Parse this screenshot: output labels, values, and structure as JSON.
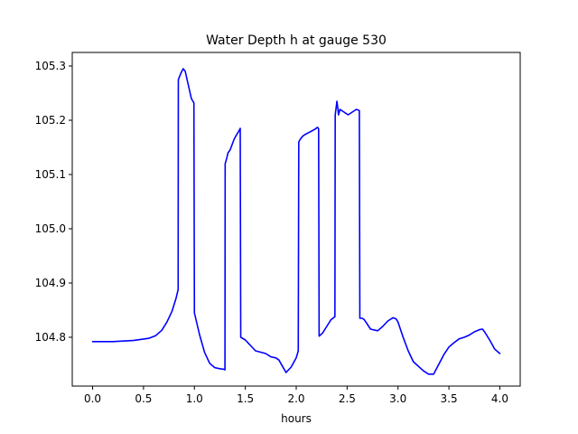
{
  "chart_data": {
    "type": "line",
    "title": "Water Depth h at gauge 530",
    "xlabel": "hours",
    "ylabel": "",
    "xlim": [
      -0.2,
      4.2
    ],
    "ylim": [
      104.71,
      105.325
    ],
    "xticks": [
      0.0,
      0.5,
      1.0,
      1.5,
      2.0,
      2.5,
      3.0,
      3.5,
      4.0
    ],
    "xtick_labels": [
      "0.0",
      "0.5",
      "1.0",
      "1.5",
      "2.0",
      "2.5",
      "3.0",
      "3.5",
      "4.0"
    ],
    "yticks": [
      104.8,
      104.9,
      105.0,
      105.1,
      105.2,
      105.3
    ],
    "ytick_labels": [
      "104.8",
      "104.9",
      "105.0",
      "105.1",
      "105.2",
      "105.3"
    ],
    "grid": false,
    "series": [
      {
        "color": "#0000ff",
        "x": [
          0.0,
          0.2,
          0.4,
          0.55,
          0.62,
          0.68,
          0.73,
          0.78,
          0.82,
          0.84,
          0.842,
          0.87,
          0.89,
          0.91,
          0.94,
          0.97,
          0.995,
          1.0,
          1.05,
          1.1,
          1.15,
          1.2,
          1.25,
          1.29,
          1.3,
          1.302,
          1.31,
          1.32,
          1.33,
          1.35,
          1.37,
          1.39,
          1.41,
          1.43,
          1.45,
          1.455,
          1.5,
          1.55,
          1.6,
          1.7,
          1.75,
          1.8,
          1.83,
          1.86,
          1.9,
          1.95,
          2.0,
          2.02,
          2.025,
          2.04,
          2.06,
          2.08,
          2.1,
          2.12,
          2.15,
          2.18,
          2.21,
          2.22,
          2.225,
          2.26,
          2.3,
          2.34,
          2.38,
          2.383,
          2.4,
          2.41,
          2.415,
          2.43,
          2.47,
          2.51,
          2.55,
          2.59,
          2.62,
          2.625,
          2.65,
          2.67,
          2.73,
          2.8,
          2.85,
          2.9,
          2.95,
          2.98,
          3.0,
          3.05,
          3.1,
          3.15,
          3.25,
          3.3,
          3.35,
          3.4,
          3.45,
          3.5,
          3.55,
          3.6,
          3.65,
          3.7,
          3.75,
          3.8,
          3.83,
          3.85,
          3.9,
          3.95,
          4.0
        ],
        "y": [
          104.792,
          104.792,
          104.794,
          104.798,
          104.803,
          104.813,
          104.828,
          104.848,
          104.872,
          104.888,
          105.275,
          105.288,
          105.295,
          105.29,
          105.265,
          105.24,
          105.232,
          104.845,
          104.805,
          104.772,
          104.752,
          104.744,
          104.742,
          104.741,
          104.74,
          105.12,
          105.125,
          105.132,
          105.14,
          105.145,
          105.155,
          105.165,
          105.172,
          105.178,
          105.185,
          104.8,
          104.795,
          104.785,
          104.775,
          104.77,
          104.764,
          104.762,
          104.758,
          104.748,
          104.735,
          104.745,
          104.762,
          104.775,
          105.16,
          105.165,
          105.17,
          105.173,
          105.175,
          105.177,
          105.18,
          105.183,
          105.187,
          105.184,
          104.802,
          104.808,
          104.82,
          104.832,
          104.838,
          105.21,
          105.235,
          105.22,
          105.21,
          105.22,
          105.215,
          105.21,
          105.215,
          105.22,
          105.218,
          104.835,
          104.835,
          104.832,
          104.815,
          104.812,
          104.82,
          104.83,
          104.836,
          104.834,
          104.828,
          104.8,
          104.775,
          104.755,
          104.738,
          104.732,
          104.732,
          104.75,
          104.768,
          104.782,
          104.79,
          104.797,
          104.8,
          104.804,
          104.81,
          104.814,
          104.815,
          104.81,
          104.795,
          104.778,
          104.77
        ]
      }
    ]
  }
}
